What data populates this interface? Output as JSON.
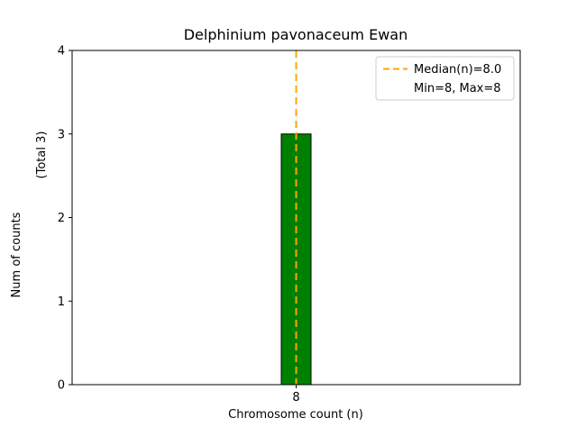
{
  "chart_data": {
    "type": "bar",
    "title": "Delphinium pavonaceum Ewan",
    "xlabel": "Chromosome count (n)",
    "ylabel": "Num of counts",
    "ylabel_note": "(Total 3)",
    "categories": [
      "8"
    ],
    "values": [
      3
    ],
    "total_counts": 3,
    "median": 8.0,
    "min": 8,
    "max": 8,
    "ylim": [
      0,
      4
    ],
    "yticks": [
      0,
      1,
      2,
      3,
      4
    ],
    "grid": false,
    "bar_color": "#008000",
    "bar_edge_color": "#000000",
    "median_line_color": "#ffa500",
    "legend": {
      "position": "upper-right",
      "border_color": "#cccccc",
      "entries": [
        {
          "label": "Median(n)=8.0",
          "handle": "dashed-line",
          "color": "#ffa500"
        },
        {
          "label": "Min=8, Max=8",
          "handle": "none",
          "color": "none"
        }
      ]
    }
  }
}
